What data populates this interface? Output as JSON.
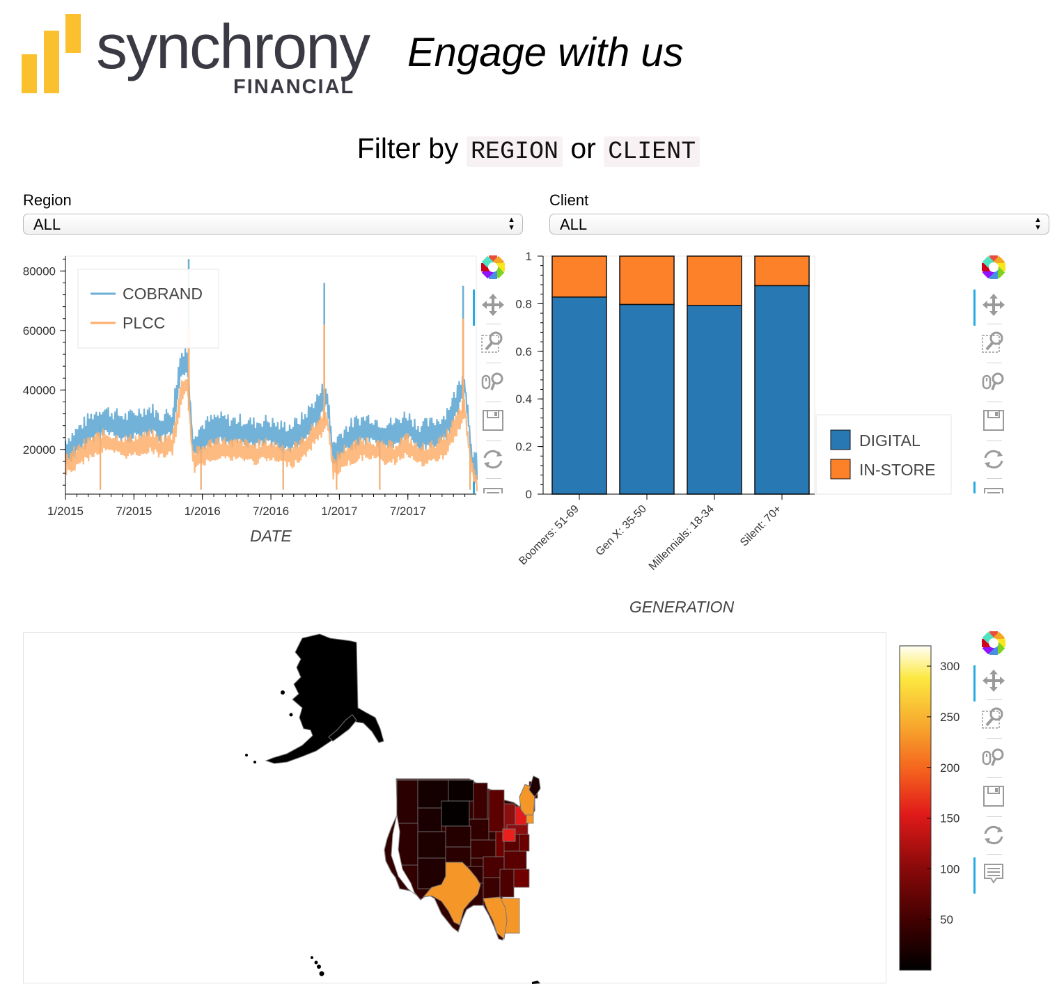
{
  "header": {
    "brand_name": "synchrony",
    "brand_sub": "FINANCIAL",
    "tagline": "Engage with us",
    "brand_colors": {
      "bars": "#fbc02d",
      "text": "#3a3a44"
    }
  },
  "filter": {
    "prefix": "Filter by",
    "opt1": "REGION",
    "joiner": "or",
    "opt2": "CLIENT"
  },
  "region_select": {
    "label": "Region",
    "value": "ALL"
  },
  "client_select": {
    "label": "Client",
    "value": "ALL"
  },
  "toolbar_icons": [
    "bokeh-logo-icon",
    "pan-icon",
    "box-zoom-icon",
    "wheel-zoom-icon",
    "save-icon",
    "reset-icon",
    "hover-icon"
  ],
  "line_chart": {
    "chart_data": {
      "type": "line",
      "xlabel": "DATE",
      "ylabel": "",
      "x_ticks": [
        "1/2015",
        "7/2015",
        "1/2016",
        "7/2016",
        "1/2017",
        "7/2017"
      ],
      "y_ticks": [
        20000,
        40000,
        60000,
        80000
      ],
      "ylim": [
        5000,
        85000
      ],
      "xlim": [
        "2015-01-01",
        "2017-12-31"
      ],
      "legend_position": "top-left",
      "series": [
        {
          "name": "COBRAND",
          "color": "#6baed6",
          "anchors": [
            [
              0,
              18000
            ],
            [
              0.03,
              22000
            ],
            [
              0.06,
              26000
            ],
            [
              0.09,
              29000
            ],
            [
              0.12,
              27000
            ],
            [
              0.15,
              26000
            ],
            [
              0.18,
              28000
            ],
            [
              0.21,
              29000
            ],
            [
              0.23,
              26000
            ],
            [
              0.26,
              28000
            ],
            [
              0.28,
              47000
            ],
            [
              0.295,
              50000
            ],
            [
              0.31,
              20000
            ],
            [
              0.34,
              24000
            ],
            [
              0.37,
              26000
            ],
            [
              0.4,
              25000
            ],
            [
              0.43,
              25000
            ],
            [
              0.46,
              24000
            ],
            [
              0.49,
              25000
            ],
            [
              0.52,
              23000
            ],
            [
              0.55,
              23000
            ],
            [
              0.58,
              26000
            ],
            [
              0.62,
              34000
            ],
            [
              0.635,
              38000
            ],
            [
              0.65,
              17000
            ],
            [
              0.68,
              22000
            ],
            [
              0.71,
              25000
            ],
            [
              0.74,
              26000
            ],
            [
              0.77,
              24000
            ],
            [
              0.8,
              24000
            ],
            [
              0.83,
              27000
            ],
            [
              0.86,
              23000
            ],
            [
              0.89,
              24000
            ],
            [
              0.92,
              26000
            ],
            [
              0.95,
              34000
            ],
            [
              0.97,
              42000
            ],
            [
              0.99,
              15000
            ],
            [
              1.0,
              12000
            ]
          ],
          "spikes": [
            [
              0.3,
              84000
            ],
            [
              0.63,
              76000
            ],
            [
              0.968,
              75000
            ]
          ]
        },
        {
          "name": "PLCC",
          "color": "#fdae6b",
          "anchors": [
            [
              0,
              14000
            ],
            [
              0.03,
              17000
            ],
            [
              0.06,
              20000
            ],
            [
              0.09,
              22000
            ],
            [
              0.12,
              21000
            ],
            [
              0.15,
              20000
            ],
            [
              0.18,
              21000
            ],
            [
              0.21,
              22000
            ],
            [
              0.23,
              20000
            ],
            [
              0.26,
              21000
            ],
            [
              0.28,
              38000
            ],
            [
              0.295,
              42000
            ],
            [
              0.31,
              15000
            ],
            [
              0.34,
              18000
            ],
            [
              0.37,
              20000
            ],
            [
              0.4,
              19000
            ],
            [
              0.43,
              19000
            ],
            [
              0.46,
              18000
            ],
            [
              0.49,
              19000
            ],
            [
              0.52,
              18000
            ],
            [
              0.55,
              17000
            ],
            [
              0.58,
              20000
            ],
            [
              0.62,
              27000
            ],
            [
              0.635,
              31000
            ],
            [
              0.65,
              13000
            ],
            [
              0.68,
              17000
            ],
            [
              0.71,
              19000
            ],
            [
              0.74,
              20000
            ],
            [
              0.77,
              18000
            ],
            [
              0.8,
              18000
            ],
            [
              0.83,
              21000
            ],
            [
              0.86,
              17000
            ],
            [
              0.89,
              18000
            ],
            [
              0.92,
              20000
            ],
            [
              0.95,
              27000
            ],
            [
              0.97,
              33000
            ],
            [
              0.99,
              11000
            ],
            [
              1.0,
              9000
            ]
          ],
          "spikes": [
            [
              0.3,
              62000
            ],
            [
              0.63,
              62000
            ],
            [
              0.968,
              64000
            ]
          ]
        }
      ]
    }
  },
  "bar_chart": {
    "chart_data": {
      "type": "bar",
      "xlabel": "GENERATION",
      "ylabel": "",
      "categories": [
        "Boomers: 51-69",
        "Gen X: 35-50",
        "Millennials: 18-34",
        "Silent: 70+"
      ],
      "ylim": [
        0,
        1
      ],
      "y_ticks": [
        0,
        0.2,
        0.4,
        0.6,
        0.8,
        1
      ],
      "stacked": true,
      "legend_position": "right",
      "series": [
        {
          "name": "DIGITAL",
          "color": "#2878b4",
          "values": [
            0.828,
            0.797,
            0.793,
            0.876
          ]
        },
        {
          "name": "IN-STORE",
          "color": "#fd8128",
          "values": [
            0.172,
            0.203,
            0.207,
            0.124
          ]
        }
      ]
    }
  },
  "map_chart": {
    "chart_data": {
      "type": "heatmap",
      "colorbar_ticks": [
        50,
        100,
        150,
        200,
        250,
        300
      ],
      "colorbar_range": [
        0,
        320
      ],
      "palette": [
        "#000000",
        "#5a0000",
        "#a01010",
        "#e8201e",
        "#f57f1f",
        "#f7b42f",
        "#fdf04a",
        "#fffff0"
      ]
    }
  }
}
